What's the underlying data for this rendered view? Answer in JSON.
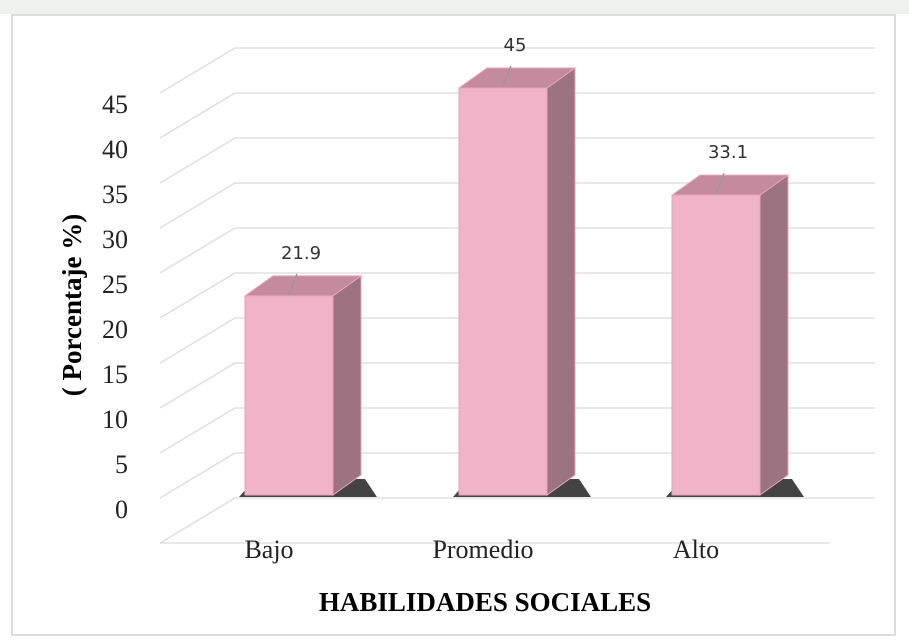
{
  "chart_data": {
    "type": "bar3d",
    "x_label": "HABILIDADES SOCIALES",
    "y_label": "( Porcentaje %)",
    "categories": [
      "Bajo",
      "Promedio",
      "Alto"
    ],
    "values": [
      21.9,
      45,
      33.1
    ],
    "color": "#f0b3c8",
    "ylim": [
      0,
      50
    ],
    "yticks": [
      0,
      5,
      10,
      15,
      20,
      25,
      30,
      35,
      40,
      45
    ],
    "grid": true
  }
}
